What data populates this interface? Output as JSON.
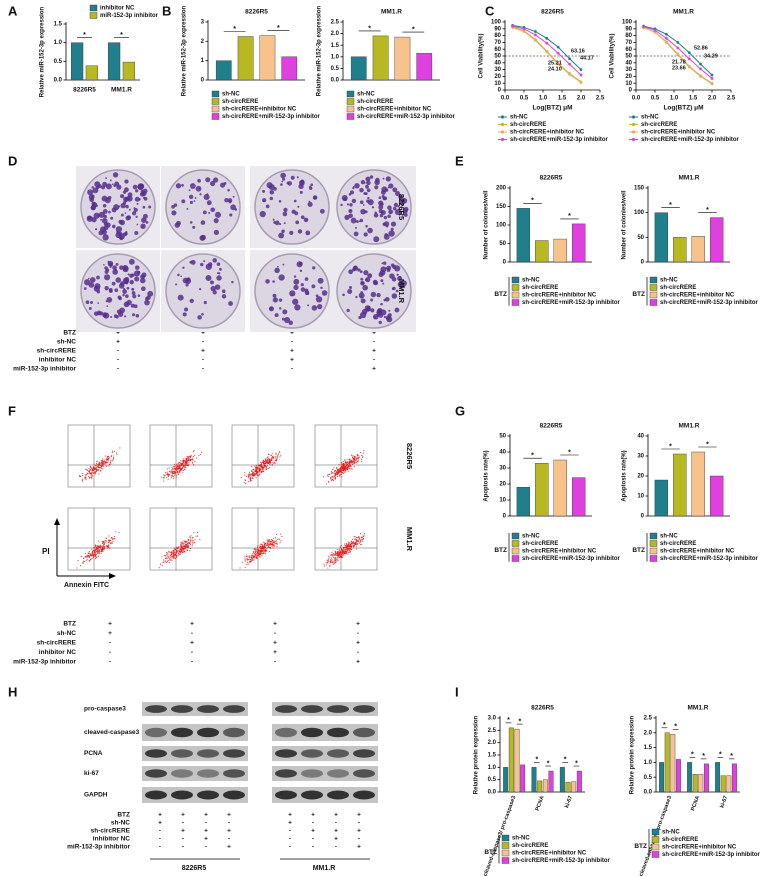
{
  "panel_labels": [
    "A",
    "B",
    "C",
    "D",
    "E",
    "F",
    "G",
    "H",
    "I"
  ],
  "cell_lines": [
    "8226R5",
    "MM1.R"
  ],
  "conditions": {
    "rows": [
      "BTZ",
      "sh-NC",
      "sh-circRERE",
      "inhibitor NC",
      "miR-152-3p inhibitor"
    ],
    "marks": [
      [
        "+",
        "+",
        "+",
        "+"
      ],
      [
        "+",
        "-",
        "-",
        "-"
      ],
      [
        "-",
        "+",
        "+",
        "+"
      ],
      [
        "-",
        "-",
        "+",
        "-"
      ],
      [
        "-",
        "-",
        "-",
        "+"
      ]
    ]
  },
  "flow_axes": {
    "y": "PI",
    "x": "Annexin FITC"
  },
  "blot_proteins": [
    "pro-caspase3",
    "cleaved-caspase3",
    "PCNA",
    "ki-67",
    "GAPDH"
  ],
  "chart_data": [
    {
      "type": "bar",
      "ylabel": "Relative miR-152-3p expression",
      "categories": [
        "8226R5",
        "MM1.R"
      ],
      "series": [
        {
          "name": "inhibitor NC",
          "color": "#1f7f8c",
          "values": [
            1.0,
            1.0
          ]
        },
        {
          "name": "miR-152-3p inhibitor",
          "color": "#b8b822",
          "values": [
            0.38,
            0.48
          ]
        }
      ],
      "ylim": [
        0,
        1.5
      ],
      "yticks": [
        {
          "value": 0,
          "label": "0.0"
        },
        0.5,
        {
          "value": 1,
          "label": "1.0"
        },
        1.5
      ],
      "annotations": [
        "*",
        "*"
      ]
    },
    {
      "type": "bar",
      "title": "8226R5",
      "ylabel": "Relative miR-152-3p expression",
      "categories": [
        null
      ],
      "series": [
        {
          "name": "sh-NC",
          "color": "#1f7f8c",
          "values": [
            1.0
          ]
        },
        {
          "name": "sh-circRERE",
          "color": "#b8b822",
          "values": [
            2.25
          ]
        },
        {
          "name": "sh-circRERE+inhibitor NC",
          "color": "#f7c28c",
          "values": [
            2.3
          ]
        },
        {
          "name": "sh-circRERE+miR-152-3p inhibitor",
          "color": "#e040e0",
          "values": [
            1.2
          ]
        }
      ],
      "ylim": [
        0,
        3
      ],
      "yticks": [
        0,
        1,
        2,
        3
      ],
      "annotations": [
        "*",
        "*"
      ]
    },
    {
      "type": "bar",
      "title": "MM1.R",
      "ylabel": "Relative miR-152-3p expression",
      "categories": [
        null
      ],
      "series": [
        {
          "name": "sh-NC",
          "color": "#1f7f8c",
          "values": [
            1.0
          ]
        },
        {
          "name": "sh-circRERE",
          "color": "#b8b822",
          "values": [
            1.9
          ]
        },
        {
          "name": "sh-circRERE+inhibitor NC",
          "color": "#f7c28c",
          "values": [
            1.85
          ]
        },
        {
          "name": "sh-circRERE+miR-152-3p inhibitor",
          "color": "#e040e0",
          "values": [
            1.15
          ]
        }
      ],
      "ylim": [
        0,
        2.5
      ],
      "yticks": [
        {
          "value": 0,
          "label": "0.0"
        },
        0.5,
        {
          "value": 1,
          "label": "1.0"
        },
        1.5,
        {
          "value": 2,
          "label": "2.0"
        },
        2.5
      ],
      "annotations": [
        "*",
        "*"
      ]
    },
    {
      "type": "line",
      "title": "8226R5",
      "ylabel": "Cell Viability(%)",
      "xlabel": "Log(BTZ) μM",
      "x": [
        0.2,
        0.5,
        0.8,
        1.1,
        1.4,
        1.7,
        2.0
      ],
      "series": [
        {
          "name": "sh-NC",
          "color": "#1f7f8c",
          "values": [
            95,
            92,
            86,
            76,
            63,
            46,
            30
          ]
        },
        {
          "name": "sh-circRERE",
          "color": "#b8b822",
          "values": [
            93,
            87,
            74,
            57,
            39,
            24,
            12
          ]
        },
        {
          "name": "sh-circRERE+inhibitor NC",
          "color": "#f0a860",
          "values": [
            92,
            86,
            73,
            56,
            38,
            23,
            11
          ]
        },
        {
          "name": "sh-circRERE+miR-152-3p inhibitor",
          "color": "#e040e0",
          "values": [
            94,
            90,
            81,
            69,
            54,
            38,
            22
          ]
        }
      ],
      "xlim": [
        0,
        2.5
      ],
      "xticks": [
        {
          "value": 0,
          "label": "0.0"
        },
        0.5,
        {
          "value": 1,
          "label": "1.0"
        },
        1.5,
        {
          "value": 2,
          "label": "2.0"
        },
        2.5
      ],
      "ylim": [
        0,
        100
      ],
      "yticks": [
        0,
        10,
        20,
        30,
        40,
        50,
        60,
        70,
        80,
        90,
        100
      ],
      "reference_line": 50,
      "annotations": [
        {
          "text": "63.16",
          "color": "#1f7f8c"
        },
        {
          "text": "44.17",
          "color": "#e040e0"
        },
        {
          "text": "25.21",
          "color": "#b8b822"
        },
        {
          "text": "24.10",
          "color": "#f0a860"
        }
      ]
    },
    {
      "type": "line",
      "title": "MM1.R",
      "ylabel": "Cell Viability(%)",
      "xlabel": "Log(BTZ) μM",
      "x": [
        0.2,
        0.5,
        0.8,
        1.1,
        1.4,
        1.7,
        2.0
      ],
      "series": [
        {
          "name": "sh-NC",
          "color": "#1f7f8c",
          "values": [
            94,
            90,
            82,
            70,
            55,
            38,
            22
          ]
        },
        {
          "name": "sh-circRERE",
          "color": "#b8b822",
          "values": [
            92,
            85,
            70,
            52,
            34,
            20,
            9
          ]
        },
        {
          "name": "sh-circRERE+inhibitor NC",
          "color": "#f0a860",
          "values": [
            92,
            85,
            71,
            53,
            35,
            21,
            10
          ]
        },
        {
          "name": "sh-circRERE+miR-152-3p inhibitor",
          "color": "#e040e0",
          "values": [
            93,
            88,
            76,
            62,
            46,
            31,
            17
          ]
        }
      ],
      "xlim": [
        0,
        2.5
      ],
      "xticks": [
        {
          "value": 0,
          "label": "0.0"
        },
        0.5,
        {
          "value": 1,
          "label": "1.0"
        },
        1.5,
        {
          "value": 2,
          "label": "2.0"
        },
        2.5
      ],
      "ylim": [
        0,
        100
      ],
      "yticks": [
        0,
        10,
        20,
        30,
        40,
        50,
        60,
        70,
        80,
        90,
        100
      ],
      "reference_line": 50,
      "annotations": [
        {
          "text": "52.86",
          "color": "#1f7f8c"
        },
        {
          "text": "34.29",
          "color": "#e040e0"
        },
        {
          "text": "21.78",
          "color": "#b8b822"
        },
        {
          "text": "23.66",
          "color": "#f0a860"
        }
      ]
    },
    {
      "type": "bar",
      "title": "8226R5",
      "ylabel": "Number of colonies/well",
      "categories": [
        null
      ],
      "legend_title": "BTZ",
      "series": [
        {
          "name": "sh-NC",
          "color": "#1f7f8c",
          "values": [
            145
          ]
        },
        {
          "name": "sh-circRERE",
          "color": "#b8b822",
          "values": [
            58
          ]
        },
        {
          "name": "sh-circRERE+inhibitor NC",
          "color": "#f7c28c",
          "values": [
            62
          ]
        },
        {
          "name": "sh-circRERE+miR-152-3p inhibitor",
          "color": "#e040e0",
          "values": [
            103
          ]
        }
      ],
      "ylim": [
        0,
        200
      ],
      "yticks": [
        0,
        50,
        100,
        150,
        200
      ],
      "annotations": [
        "*",
        "*"
      ]
    },
    {
      "type": "bar",
      "title": "MM1.R",
      "ylabel": "Number of colonies/well",
      "categories": [
        null
      ],
      "legend_title": "BTZ",
      "series": [
        {
          "name": "sh-NC",
          "color": "#1f7f8c",
          "values": [
            100
          ]
        },
        {
          "name": "sh-circRERE",
          "color": "#b8b822",
          "values": [
            50
          ]
        },
        {
          "name": "sh-circRERE+inhibitor NC",
          "color": "#f7c28c",
          "values": [
            52
          ]
        },
        {
          "name": "sh-circRERE+miR-152-3p inhibitor",
          "color": "#e040e0",
          "values": [
            90
          ]
        }
      ],
      "ylim": [
        0,
        150
      ],
      "yticks": [
        0,
        50,
        100,
        150
      ],
      "annotations": [
        "*",
        "*"
      ]
    },
    {
      "type": "bar",
      "title": "8226R5",
      "ylabel": "Apoptosis rate(%)",
      "categories": [
        null
      ],
      "legend_title": "BTZ",
      "series": [
        {
          "name": "sh-NC",
          "color": "#1f7f8c",
          "values": [
            18
          ]
        },
        {
          "name": "sh-circRERE",
          "color": "#b8b822",
          "values": [
            33
          ]
        },
        {
          "name": "sh-circRERE+inhibitor NC",
          "color": "#f7c28c",
          "values": [
            35
          ]
        },
        {
          "name": "sh-circRERE+miR-152-3p inhibitor",
          "color": "#e040e0",
          "values": [
            24
          ]
        }
      ],
      "ylim": [
        0,
        50
      ],
      "yticks": [
        0,
        10,
        20,
        30,
        40,
        50
      ],
      "annotations": [
        "*",
        "*"
      ]
    },
    {
      "type": "bar",
      "title": "MM1.R",
      "ylabel": "Apoptosis rate(%)",
      "categories": [
        null
      ],
      "legend_title": "BTZ",
      "series": [
        {
          "name": "sh-NC",
          "color": "#1f7f8c",
          "values": [
            18
          ]
        },
        {
          "name": "sh-circRERE",
          "color": "#b8b822",
          "values": [
            31
          ]
        },
        {
          "name": "sh-circRERE+inhibitor NC",
          "color": "#f7c28c",
          "values": [
            32
          ]
        },
        {
          "name": "sh-circRERE+miR-152-3p inhibitor",
          "color": "#e040e0",
          "values": [
            20
          ]
        }
      ],
      "ylim": [
        0,
        40
      ],
      "yticks": [
        0,
        10,
        20,
        30,
        40
      ],
      "annotations": [
        "*",
        "*"
      ]
    },
    {
      "type": "bar",
      "title": "8226R5",
      "ylabel": "Relative protein expression",
      "legend_title": "BTZ",
      "categories": [
        "cleaved-caspase3/ pro-caspase3",
        "PCNA",
        "ki-67"
      ],
      "series": [
        {
          "name": "sh-NC",
          "color": "#1f7f8c",
          "values": [
            1.0,
            1.0,
            1.0
          ]
        },
        {
          "name": "sh-circRERE",
          "color": "#b8b822",
          "values": [
            2.6,
            0.45,
            0.4
          ]
        },
        {
          "name": "sh-circRERE+inhibitor NC",
          "color": "#f7c28c",
          "values": [
            2.55,
            0.5,
            0.42
          ]
        },
        {
          "name": "sh-circRERE+miR-152-3p inhibitor",
          "color": "#e040e0",
          "values": [
            1.1,
            0.85,
            0.85
          ]
        }
      ],
      "ylim": [
        0,
        3
      ],
      "yticks": [
        {
          "value": 0,
          "label": "0.0"
        },
        0.5,
        {
          "value": 1,
          "label": "1.0"
        },
        1.5,
        {
          "value": 2,
          "label": "2.0"
        },
        2.5,
        {
          "value": 3,
          "label": "3.0"
        }
      ],
      "annotations": [
        "*",
        "*",
        "*",
        "*",
        "*",
        "*"
      ]
    },
    {
      "type": "bar",
      "title": "MM1.R",
      "ylabel": "Relative protein expression",
      "legend_title": "BTZ",
      "categories": [
        "cleaved-caspase3/ pro-caspase3",
        "PCNA",
        "ki-67"
      ],
      "series": [
        {
          "name": "sh-NC",
          "color": "#1f7f8c",
          "values": [
            1.0,
            1.0,
            1.0
          ]
        },
        {
          "name": "sh-circRERE",
          "color": "#b8b822",
          "values": [
            2.0,
            0.6,
            0.55
          ]
        },
        {
          "name": "sh-circRERE+inhibitor NC",
          "color": "#f7c28c",
          "values": [
            1.95,
            0.6,
            0.55
          ]
        },
        {
          "name": "sh-circRERE+miR-152-3p inhibitor",
          "color": "#e040e0",
          "values": [
            1.1,
            0.95,
            0.95
          ]
        }
      ],
      "ylim": [
        0,
        2.5
      ],
      "yticks": [
        {
          "value": 0,
          "label": "0.0"
        },
        0.5,
        {
          "value": 1,
          "label": "1.0"
        },
        1.5,
        {
          "value": 2,
          "label": "2.0"
        },
        2.5
      ],
      "annotations": [
        "*",
        "*",
        "*",
        "*",
        "*",
        "*"
      ]
    }
  ]
}
